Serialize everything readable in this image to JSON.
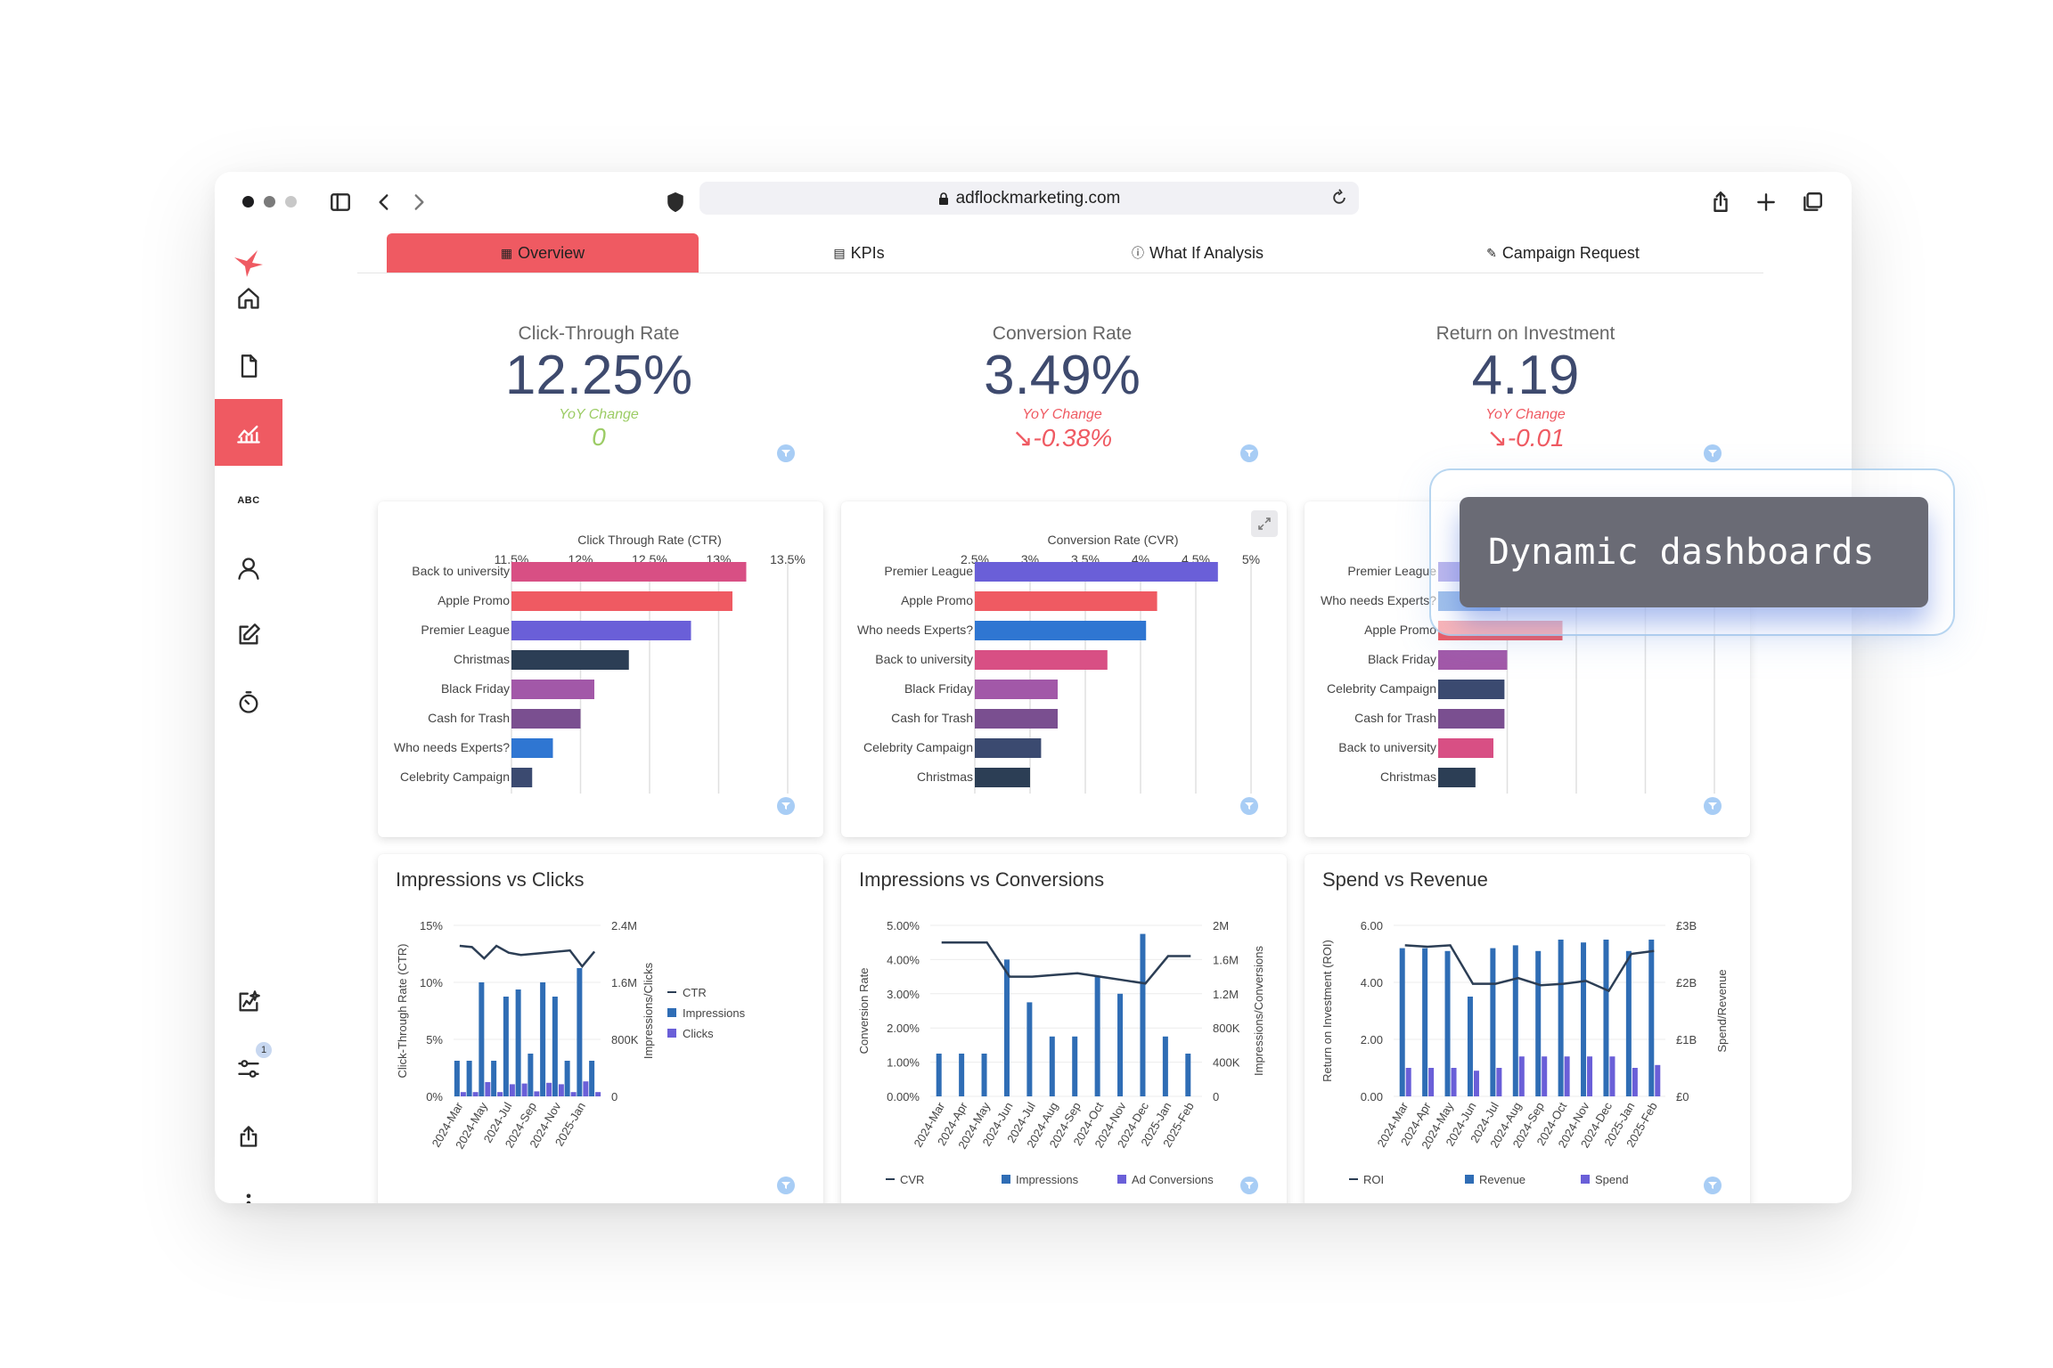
{
  "browser": {
    "url": "adflockmarketing.com"
  },
  "tabs": [
    {
      "label": "Overview",
      "icon": "grid-icon"
    },
    {
      "label": "KPIs",
      "icon": "chart-icon"
    },
    {
      "label": "What If Analysis",
      "icon": "question-icon"
    },
    {
      "label": "Campaign Request",
      "icon": "edit-icon"
    }
  ],
  "sidebar": {
    "notification_count": "1"
  },
  "kpis": [
    {
      "title": "Click-Through Rate",
      "value": "12.25%",
      "yoy_label": "YoY Change",
      "change": "0",
      "color": "#9ccc65"
    },
    {
      "title": "Conversion Rate",
      "value": "3.49%",
      "yoy_label": "YoY Change",
      "change": "↘-0.38%",
      "color": "#ef5a62"
    },
    {
      "title": "Return on Investment",
      "value": "4.19",
      "yoy_label": "YoY Change",
      "change": "↘-0.01",
      "color": "#ef5a62"
    }
  ],
  "overlay": {
    "text": "Dynamic dashboards"
  },
  "chart_data": [
    {
      "type": "bar",
      "orientation": "horizontal",
      "title": "Click Through Rate (CTR)",
      "categories": [
        "Back to university",
        "Apple Promo",
        "Premier League",
        "Christmas",
        "Black Friday",
        "Cash for Trash",
        "Who needs Experts?",
        "Celebrity Campaign"
      ],
      "values": [
        13.2,
        13.1,
        12.8,
        12.35,
        12.1,
        12.0,
        11.8,
        11.65
      ],
      "colors": [
        "#d84f84",
        "#ef5a62",
        "#6a5fd8",
        "#2c3e55",
        "#a258a8",
        "#7a4f90",
        "#2f76d2",
        "#3b4a70"
      ],
      "xticks": [
        "11.5%",
        "12%",
        "12.5%",
        "13%",
        "13.5%"
      ],
      "xlim": [
        11.5,
        13.5
      ]
    },
    {
      "type": "bar",
      "orientation": "horizontal",
      "title": "Conversion Rate (CVR)",
      "categories": [
        "Premier League",
        "Apple Promo",
        "Who needs Experts?",
        "Back to university",
        "Black Friday",
        "Cash for Trash",
        "Celebrity Campaign",
        "Christmas"
      ],
      "values": [
        4.7,
        4.15,
        4.05,
        3.7,
        3.25,
        3.25,
        3.1,
        3.0
      ],
      "colors": [
        "#6a5fd8",
        "#ef5a62",
        "#2f76d2",
        "#d84f84",
        "#a258a8",
        "#7a4f90",
        "#3b4a70",
        "#2c3e55"
      ],
      "xticks": [
        "2.5%",
        "3%",
        "3.5%",
        "4%",
        "4.5%",
        "5%"
      ],
      "xlim": [
        2.5,
        5
      ]
    },
    {
      "type": "bar",
      "orientation": "horizontal",
      "categories": [
        "Premier League",
        "Who needs Experts?",
        "Apple Promo",
        "Black Friday",
        "Celebrity Campaign",
        "Cash for Trash",
        "Back to university",
        "Christmas"
      ],
      "values": [
        0.5,
        0.45,
        0.9,
        0.5,
        0.48,
        0.48,
        0.4,
        0.27
      ],
      "colors": [
        "#6a5fd8",
        "#2f76d2",
        "#ef5a62",
        "#a258a8",
        "#3b4a70",
        "#7a4f90",
        "#d84f84",
        "#2c3e55"
      ],
      "xlim": [
        0,
        2
      ]
    },
    {
      "type": "bar",
      "title": "Impressions vs Clicks",
      "x": [
        "2024-Mar",
        "2024-Apr",
        "2024-May",
        "2024-Jun",
        "2024-Jul",
        "2024-Aug",
        "2024-Sep",
        "2024-Oct",
        "2024-Nov",
        "2024-Dec",
        "2025-Jan",
        "2025-Feb"
      ],
      "xticks": [
        "2024-Mar",
        "2024-May",
        "2024-Jul",
        "2024-Sep",
        "2024-Nov",
        "2025-Jan"
      ],
      "series": [
        {
          "name": "CTR",
          "kind": "line",
          "values": [
            13.2,
            13.1,
            12.1,
            13.2,
            12.6,
            12.4,
            12.5,
            12.6,
            12.7,
            12.8,
            11.4,
            12.7
          ]
        },
        {
          "name": "Impressions",
          "kind": "bar",
          "values": [
            500000,
            500000,
            1600000,
            500000,
            1400000,
            1500000,
            600000,
            1600000,
            1400000,
            500000,
            1800000,
            500000
          ]
        },
        {
          "name": "Clicks",
          "kind": "bar",
          "values": [
            60000,
            60000,
            200000,
            60000,
            170000,
            180000,
            70000,
            190000,
            170000,
            60000,
            210000,
            60000
          ]
        }
      ],
      "ylabel": "Click-Through Rate (CTR)",
      "y2label": "Impressions/Clicks",
      "yticks": [
        "0%",
        "5%",
        "10%",
        "15%"
      ],
      "y2ticks": [
        "0",
        "800K",
        "1.6M",
        "2.4M"
      ],
      "ylim": [
        0,
        15
      ],
      "y2lim": [
        0,
        2400000
      ]
    },
    {
      "type": "bar",
      "title": "Impressions vs Conversions",
      "x": [
        "2024-Mar",
        "2024-Apr",
        "2024-May",
        "2024-Jun",
        "2024-Jul",
        "2024-Aug",
        "2024-Sep",
        "2024-Oct",
        "2024-Nov",
        "2024-Dec",
        "2025-Jan",
        "2025-Feb"
      ],
      "xticks": [
        "2024-Mar",
        "2024-Apr",
        "2024-May",
        "2024-Jun",
        "2024-Jul",
        "2024-Aug",
        "2024-Sep",
        "2024-Oct",
        "2024-Nov",
        "2024-Dec",
        "2025-Jan",
        "2025-Feb"
      ],
      "series": [
        {
          "name": "CVR",
          "kind": "line",
          "values": [
            4.5,
            4.5,
            4.5,
            3.5,
            3.5,
            3.55,
            3.6,
            3.5,
            3.4,
            3.3,
            4.1,
            4.1
          ]
        },
        {
          "name": "Impressions",
          "kind": "bar",
          "values": [
            500000,
            500000,
            500000,
            1600000,
            1100000,
            700000,
            700000,
            1400000,
            1200000,
            1900000,
            700000,
            500000
          ]
        },
        {
          "name": "Ad Conversions",
          "kind": "bar",
          "values": [
            0,
            0,
            0,
            0,
            0,
            0,
            0,
            0,
            0,
            0,
            0,
            0
          ]
        }
      ],
      "ylabel": "Conversion Rate",
      "y2label": "Impressions/Conversions",
      "yticks": [
        "0.00%",
        "1.00%",
        "2.00%",
        "3.00%",
        "4.00%",
        "5.00%"
      ],
      "y2ticks": [
        "0",
        "400K",
        "800K",
        "1.2M",
        "1.6M",
        "2M"
      ],
      "ylim": [
        0,
        5
      ],
      "y2lim": [
        0,
        2000000
      ]
    },
    {
      "type": "bar",
      "title": "Spend vs Revenue",
      "x": [
        "2024-Mar",
        "2024-Apr",
        "2024-May",
        "2024-Jun",
        "2024-Jul",
        "2024-Aug",
        "2024-Sep",
        "2024-Oct",
        "2024-Nov",
        "2024-Dec",
        "2025-Jan",
        "2025-Feb"
      ],
      "xticks": [
        "2024-Mar",
        "2024-Apr",
        "2024-May",
        "2024-Jun",
        "2024-Jul",
        "2024-Aug",
        "2024-Sep",
        "2024-Oct",
        "2024-Nov",
        "2024-Dec",
        "2025-Jan",
        "2025-Feb"
      ],
      "series": [
        {
          "name": "ROI",
          "kind": "line",
          "values": [
            5.3,
            5.25,
            5.3,
            3.95,
            3.95,
            4.15,
            3.9,
            3.95,
            4.05,
            3.7,
            5.0,
            5.1
          ]
        },
        {
          "name": "Revenue",
          "kind": "bar",
          "values": [
            2600000000,
            2600000000,
            2550000000,
            1750000000,
            2600000000,
            2650000000,
            2550000000,
            2750000000,
            2700000000,
            2750000000,
            2550000000,
            2750000000
          ]
        },
        {
          "name": "Spend",
          "kind": "bar",
          "values": [
            500000000,
            500000000,
            500000000,
            450000000,
            500000000,
            700000000,
            700000000,
            700000000,
            700000000,
            700000000,
            500000000,
            550000000
          ]
        }
      ],
      "ylabel": "Return on Investment (ROI)",
      "y2label": "Spend/Revenue",
      "yticks": [
        "0.00",
        "2.00",
        "4.00",
        "6.00"
      ],
      "y2ticks": [
        "£0",
        "£1B",
        "£2B",
        "£3B"
      ],
      "ylim": [
        0,
        6
      ],
      "y2lim": [
        0,
        3000000000
      ]
    }
  ]
}
